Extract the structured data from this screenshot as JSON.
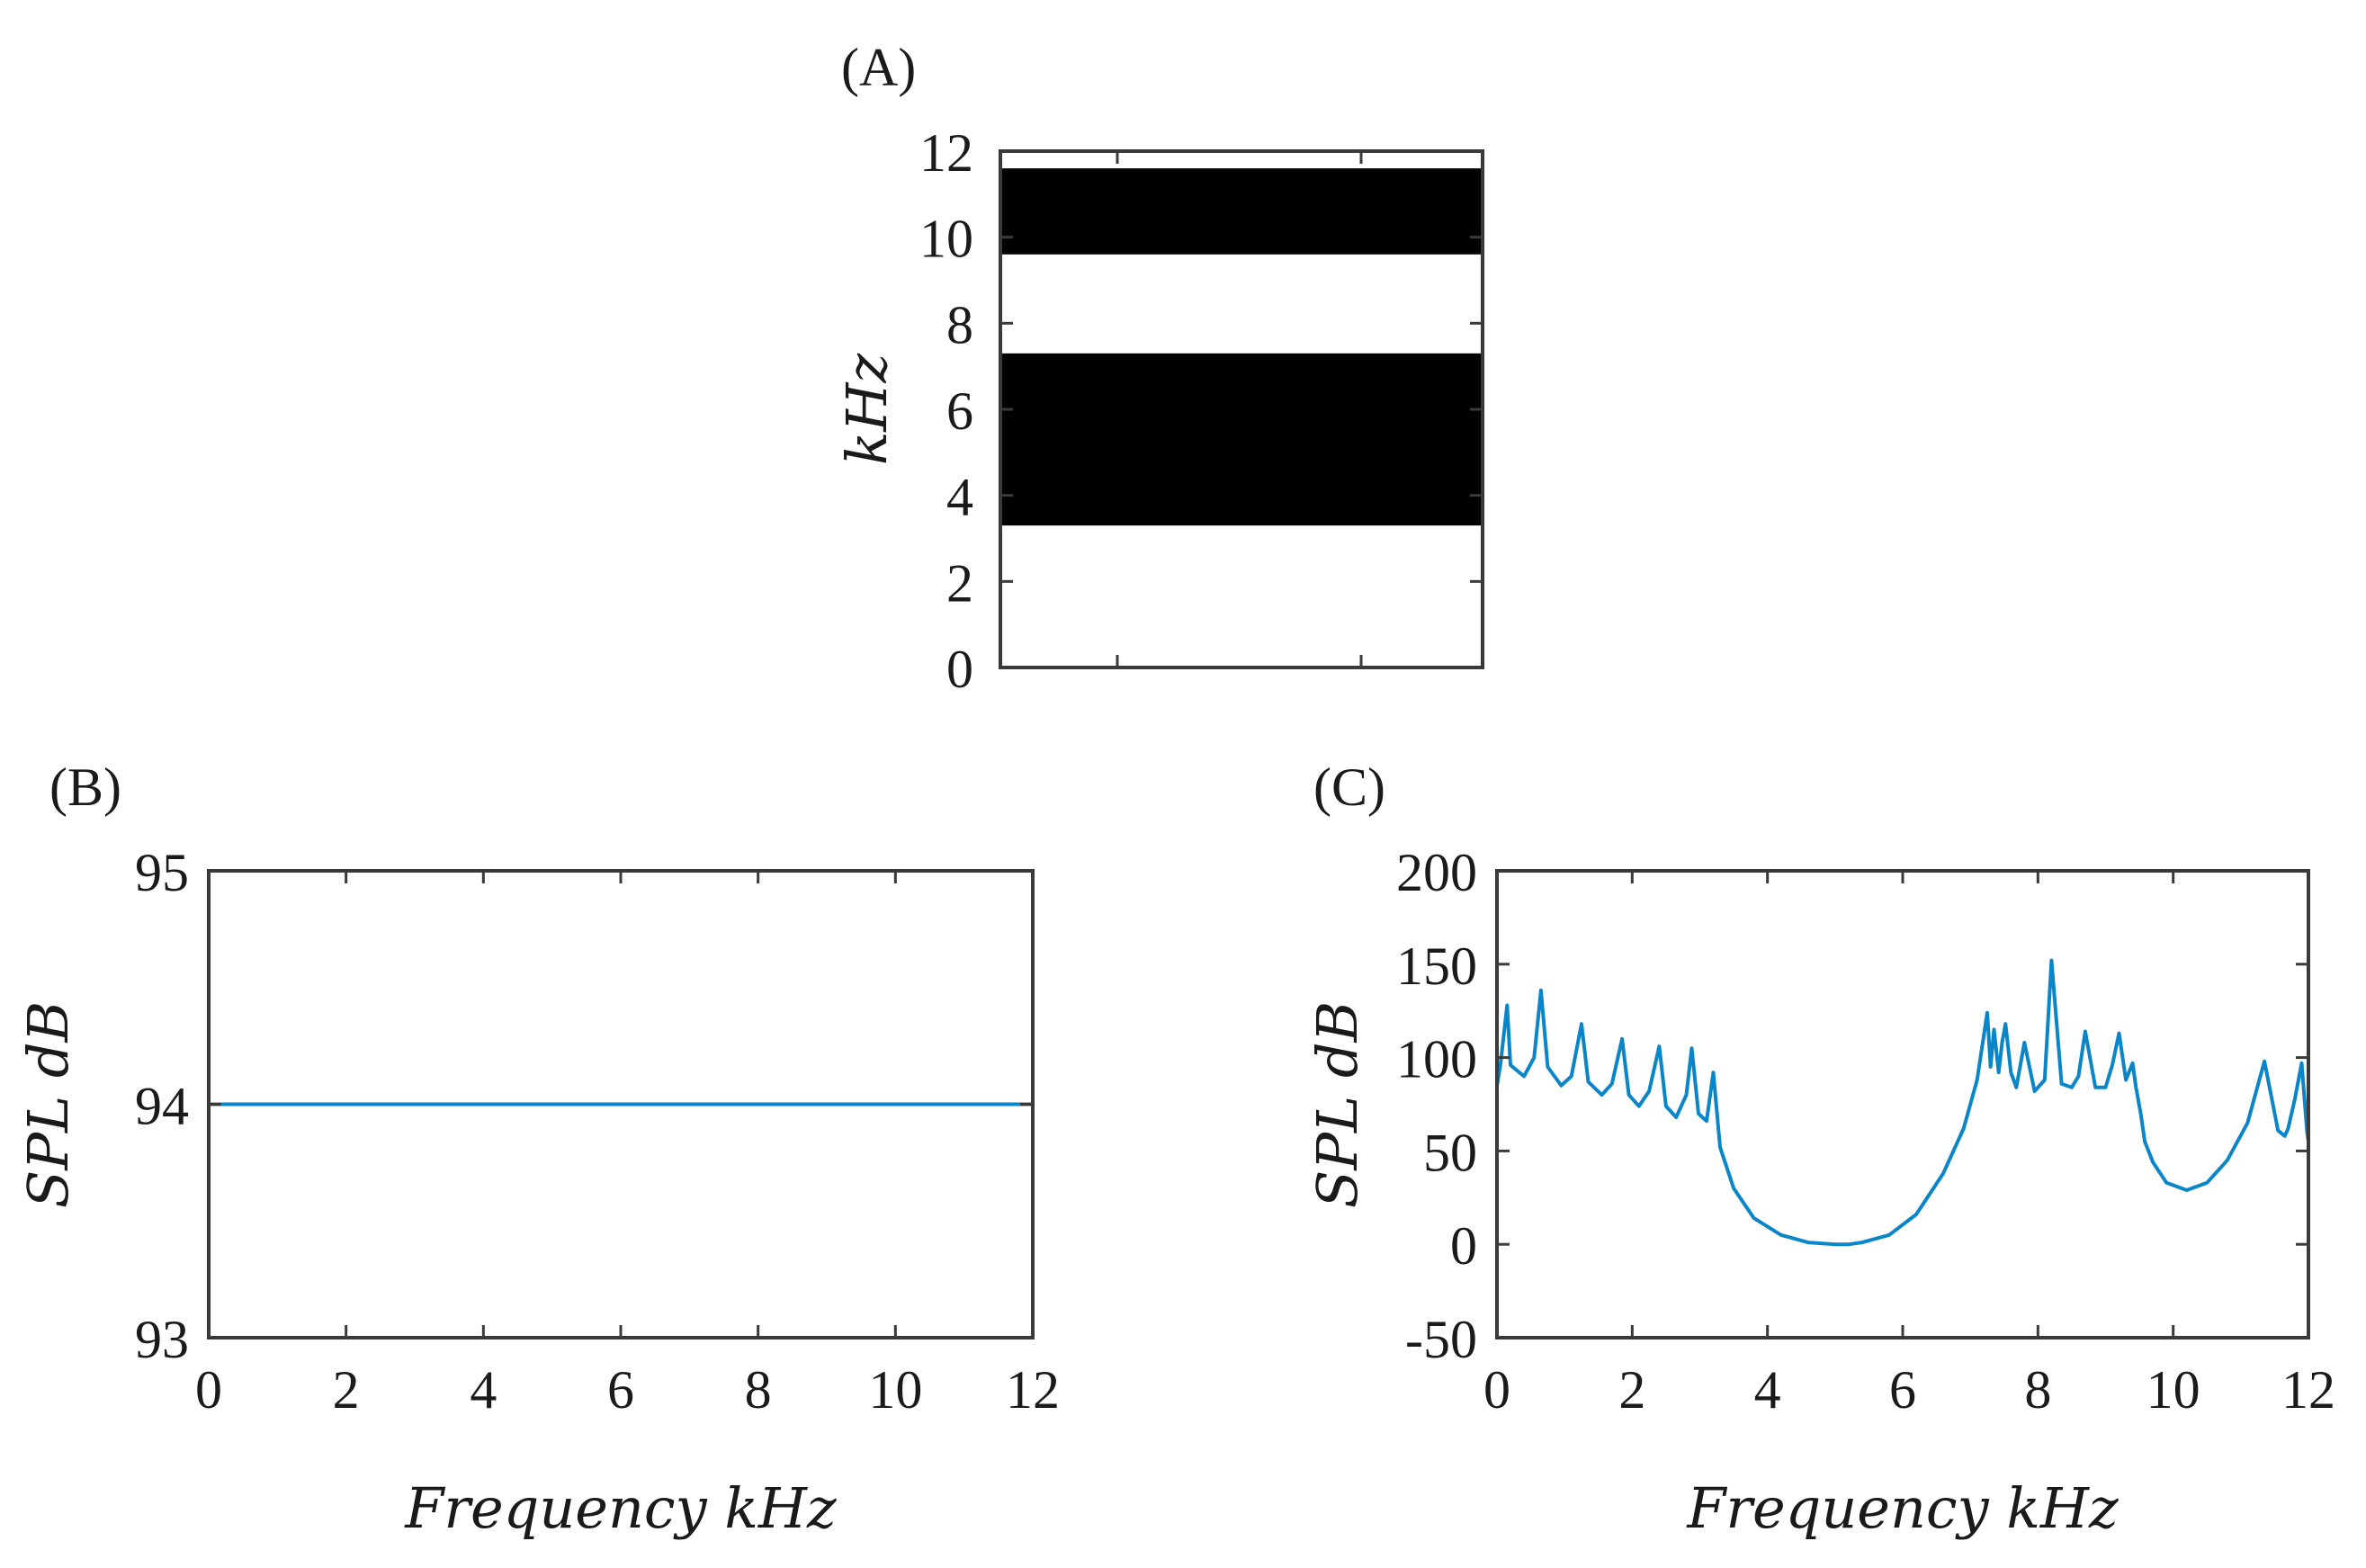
{
  "chart_data": [
    {
      "id": "A",
      "panel_label": "(A)",
      "type": "heatmap",
      "title": "",
      "xlabel": "",
      "ylabel": "kHz",
      "ylim": [
        0,
        12
      ],
      "yticks": [
        0,
        2,
        4,
        6,
        8,
        10,
        12
      ],
      "bands": [
        {
          "from": 3.3,
          "to": 7.3,
          "color": "#000000"
        },
        {
          "from": 9.6,
          "to": 11.6,
          "color": "#000000"
        }
      ]
    },
    {
      "id": "B",
      "panel_label": "(B)",
      "type": "line",
      "xlabel": "Frequency kHz",
      "ylabel": "SPL dB",
      "xlim": [
        0,
        12
      ],
      "ylim": [
        93,
        95
      ],
      "xticks": [
        0,
        2,
        4,
        6,
        8,
        10,
        12
      ],
      "yticks": [
        93,
        94,
        95
      ],
      "series": [
        {
          "name": "SPL",
          "color": "#0a86c8",
          "x": [
            0,
            12
          ],
          "y": [
            94,
            94
          ]
        }
      ]
    },
    {
      "id": "C",
      "panel_label": "(C)",
      "type": "line",
      "xlabel": "Frequency kHz",
      "ylabel": "SPL dB",
      "xlim": [
        0,
        12
      ],
      "ylim": [
        -50,
        200
      ],
      "xticks": [
        0,
        2,
        4,
        6,
        8,
        10,
        12
      ],
      "yticks": [
        -50,
        0,
        50,
        100,
        150,
        200
      ],
      "series": [
        {
          "name": "SPL",
          "color": "#0a86c8",
          "x": [
            0.0,
            0.05,
            0.15,
            0.2,
            0.4,
            0.55,
            0.65,
            0.75,
            0.95,
            1.1,
            1.25,
            1.35,
            1.55,
            1.7,
            1.85,
            1.95,
            2.1,
            2.25,
            2.4,
            2.5,
            2.65,
            2.8,
            2.88,
            2.98,
            3.1,
            3.2,
            3.3,
            3.5,
            3.8,
            4.2,
            4.6,
            5.0,
            5.2,
            5.4,
            5.8,
            6.2,
            6.6,
            6.9,
            7.1,
            7.25,
            7.3,
            7.35,
            7.42,
            7.47,
            7.52,
            7.6,
            7.68,
            7.8,
            7.95,
            8.1,
            8.2,
            8.35,
            8.5,
            8.6,
            8.7,
            8.85,
            9.0,
            9.1,
            9.2,
            9.3,
            9.4,
            9.45,
            9.52,
            9.58,
            9.7,
            9.9,
            10.2,
            10.5,
            10.8,
            11.1,
            11.35,
            11.55,
            11.65,
            11.7,
            11.8,
            11.9,
            11.98,
            12.0
          ],
          "y": [
            85,
            96,
            128,
            96,
            90,
            100,
            136,
            95,
            85,
            90,
            118,
            87,
            80,
            86,
            110,
            80,
            74,
            82,
            106,
            74,
            68,
            80,
            105,
            70,
            66,
            92,
            52,
            30,
            14,
            5,
            1,
            0,
            0,
            1,
            5,
            16,
            38,
            62,
            88,
            124,
            95,
            115,
            92,
            108,
            118,
            92,
            84,
            108,
            82,
            88,
            152,
            86,
            84,
            90,
            114,
            84,
            84,
            96,
            113,
            88,
            97,
            84,
            70,
            55,
            44,
            33,
            29,
            33,
            45,
            65,
            98,
            61,
            58,
            62,
            78,
            97,
            60,
            55
          ]
        }
      ]
    }
  ]
}
